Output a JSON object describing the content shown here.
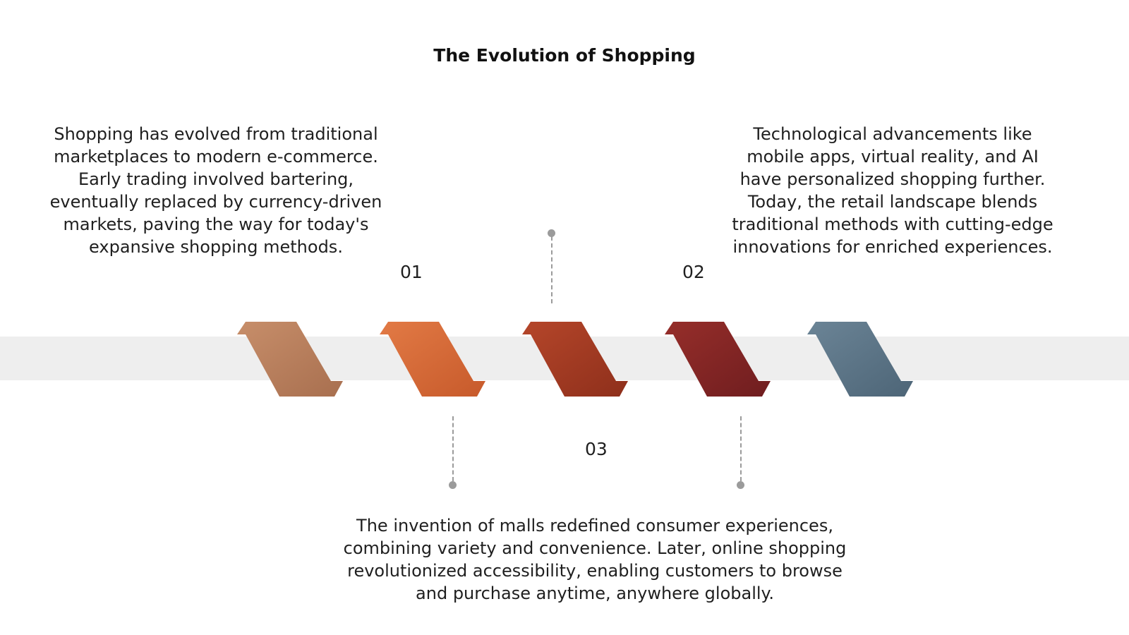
{
  "title": "The Evolution of Shopping",
  "stages": [
    {
      "number": "01",
      "text": "Shopping has evolved from traditional marketplaces to modern e-commerce. Early trading involved bartering, eventually replaced by currency-driven markets, paving the way for today's expansive shopping methods."
    },
    {
      "number": "02",
      "text": "Technological advancements like mobile apps, virtual reality, and AI have personalized shopping further. Today, the retail landscape blends traditional methods with cutting-edge innovations for enriched experiences."
    },
    {
      "number": "03",
      "text": "The invention of malls redefined consumer experiences, combining variety and convenience. Later, online shopping revolutionized accessibility, enabling customers to browse and purchase anytime, anywhere globally."
    }
  ],
  "chevrons": [
    {
      "color_light": "#c78e6a",
      "color_dark": "#a86f4f"
    },
    {
      "color_light": "#e27a45",
      "color_dark": "#c75a2b"
    },
    {
      "color_light": "#b5462a",
      "color_dark": "#8e2f1b"
    },
    {
      "color_light": "#962e2a",
      "color_dark": "#6f1d1f"
    },
    {
      "color_light": "#6b8496",
      "color_dark": "#4d6577"
    }
  ],
  "colors": {
    "band": "#eeeeee",
    "connector": "#9b9b9b",
    "text": "#1f1f1f"
  }
}
